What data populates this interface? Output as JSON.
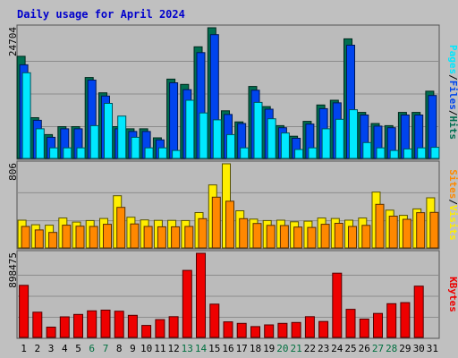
{
  "chart_data": {
    "type": "bar",
    "title": "Daily usage for April 2024",
    "categories": [
      "1",
      "2",
      "3",
      "4",
      "5",
      "6",
      "7",
      "8",
      "9",
      "10",
      "11",
      "12",
      "13",
      "14",
      "15",
      "16",
      "17",
      "18",
      "19",
      "20",
      "21",
      "22",
      "23",
      "24",
      "25",
      "26",
      "27",
      "28",
      "29",
      "30",
      "31"
    ],
    "weekend_days": [
      "6",
      "7",
      "13",
      "14",
      "20",
      "21",
      "27",
      "28"
    ],
    "colors": {
      "title": "#0000cc",
      "background": "#c0c0c0",
      "panel": "#bbbbbb",
      "grid": "#8c8c8c",
      "weekday_label": "#000000",
      "weekend_label": "#007040",
      "hits": "#006e50",
      "files": "#0044ee",
      "pages": "#00e8ff",
      "visits": "#ffee00",
      "sites": "#ff8800",
      "kbytes": "#ee0000"
    },
    "panels": [
      {
        "ymax_label": "24704",
        "ymax": 24704,
        "legend": [
          {
            "name": "Hits",
            "color": "#006e50"
          },
          {
            "name": "Files",
            "color": "#0044ee"
          },
          {
            "name": "Pages",
            "color": "#00e8ff"
          }
        ],
        "series": [
          {
            "name": "Hits",
            "values": [
              19300,
              7700,
              4500,
              6000,
              6000,
              15300,
              12400,
              6000,
              5600,
              5600,
              3900,
              15000,
              14000,
              21100,
              24700,
              9000,
              6900,
              13600,
              9800,
              6200,
              4200,
              7000,
              10100,
              11000,
              22600,
              8700,
              6600,
              6200,
              8700,
              8700,
              12700
            ]
          },
          {
            "name": "Files",
            "values": [
              17700,
              7200,
              4000,
              5600,
              5600,
              14800,
              11800,
              5600,
              5100,
              5100,
              3500,
              14300,
              13000,
              20000,
              23400,
              8300,
              6600,
              12900,
              9300,
              5800,
              3800,
              6500,
              9400,
              10500,
              21400,
              8200,
              6100,
              5800,
              8200,
              8200,
              11900
            ]
          },
          {
            "name": "Pages",
            "values": [
              16200,
              5600,
              2000,
              2000,
              2000,
              6200,
              10400,
              8000,
              4000,
              2000,
              2000,
              1500,
              11000,
              8600,
              7300,
              4500,
              2000,
              10600,
              7500,
              4800,
              1700,
              2000,
              5600,
              7400,
              9200,
              3000,
              2000,
              1500,
              1800,
              2000,
              2100
            ]
          }
        ]
      },
      {
        "ymax_label": "806",
        "ymax": 806,
        "legend": [
          {
            "name": "Visits",
            "color": "#ffee00"
          },
          {
            "name": "Sites",
            "color": "#ff8800"
          }
        ],
        "series": [
          {
            "name": "Visits",
            "values": [
              266,
              222,
              218,
              286,
              248,
              262,
              282,
              500,
              294,
              268,
              264,
              264,
              262,
              339,
              604,
              806,
              356,
              276,
              262,
              266,
              250,
              256,
              286,
              282,
              266,
              286,
              535,
              362,
              312,
              374,
              480
            ]
          },
          {
            "name": "Sites",
            "values": [
              206,
              172,
              148,
              218,
              208,
              206,
              226,
              388,
              230,
              206,
              202,
              202,
              206,
              280,
              486,
              448,
              280,
              234,
              216,
              214,
              200,
              196,
              226,
              236,
              206,
              216,
              418,
              304,
              274,
              338,
              340
            ]
          }
        ]
      },
      {
        "ymax_label": "898475",
        "ymax": 898475,
        "legend": [
          {
            "name": "KBytes",
            "color": "#ee0000"
          }
        ],
        "series": [
          {
            "name": "KBytes",
            "values": [
              556000,
              270000,
              110000,
              220000,
              246000,
              284000,
              292000,
              280000,
              236000,
              128000,
              190000,
              222000,
              716000,
              898475,
              356000,
              166000,
              150000,
              116000,
              134000,
              150000,
              160000,
              222000,
              170000,
              686000,
              300000,
              196000,
              256000,
              360000,
              372000,
              548000,
              0
            ]
          }
        ]
      }
    ]
  }
}
